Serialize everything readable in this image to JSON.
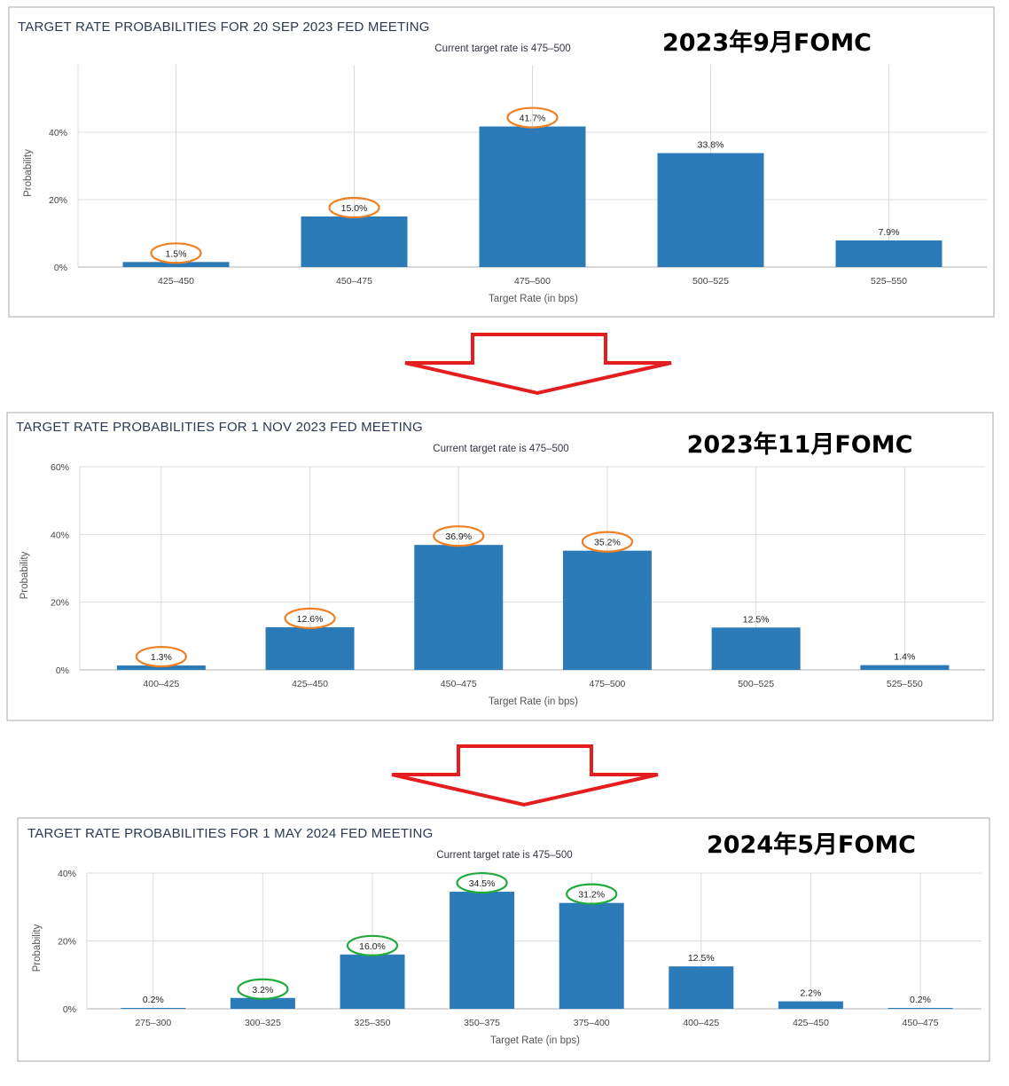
{
  "colors": {
    "bar": "#2b7bb9",
    "grid": "#dcdcdc",
    "frame": "#a8a8a8",
    "arrow": "#e41e1e",
    "circle_orange": "#f07f22",
    "circle_green": "#1faa3a"
  },
  "chart_data": [
    {
      "type": "bar",
      "title": "TARGET RATE PROBABILITIES FOR 20 SEP 2023 FED MEETING",
      "subtitle": "Current target rate is 475–500",
      "annotation": "2023年9月FOMC",
      "xlabel": "Target Rate (in bps)",
      "ylabel": "Probability",
      "ylim": [
        0,
        60
      ],
      "yticks": [
        0,
        20,
        40
      ],
      "ytick_labels": [
        "0%",
        "20%",
        "40%"
      ],
      "categories": [
        "425–450",
        "450–475",
        "475–500",
        "500–525",
        "525–550"
      ],
      "values": [
        1.5,
        15.0,
        41.7,
        33.8,
        7.9
      ],
      "value_labels": [
        "1.5%",
        "15.0%",
        "41.7%",
        "33.8%",
        "7.9%"
      ],
      "circled": [
        true,
        true,
        true,
        false,
        false
      ],
      "circle_color": "orange"
    },
    {
      "type": "bar",
      "title": "TARGET RATE PROBABILITIES FOR 1 NOV 2023 FED MEETING",
      "subtitle": "Current target rate is 475–500",
      "annotation": "2023年11月FOMC",
      "xlabel": "Target Rate (in bps)",
      "ylabel": "Probability",
      "ylim": [
        0,
        60
      ],
      "yticks": [
        0,
        20,
        40,
        60
      ],
      "ytick_labels": [
        "0%",
        "20%",
        "40%",
        "60%"
      ],
      "categories": [
        "400–425",
        "425–450",
        "450–475",
        "475–500",
        "500–525",
        "525–550"
      ],
      "values": [
        1.3,
        12.6,
        36.9,
        35.2,
        12.5,
        1.4
      ],
      "value_labels": [
        "1.3%",
        "12.6%",
        "36.9%",
        "35.2%",
        "12.5%",
        "1.4%"
      ],
      "circled": [
        true,
        true,
        true,
        true,
        false,
        false
      ],
      "circle_color": "orange"
    },
    {
      "type": "bar",
      "title": "TARGET RATE PROBABILITIES FOR 1 MAY 2024 FED MEETING",
      "subtitle": "Current target rate is 475–500",
      "annotation": "2024年5月FOMC",
      "xlabel": "Target Rate (in bps)",
      "ylabel": "Probability",
      "ylim": [
        0,
        40
      ],
      "yticks": [
        0,
        20,
        40
      ],
      "ytick_labels": [
        "0%",
        "20%",
        "40%"
      ],
      "categories": [
        "275–300",
        "300–325",
        "325–350",
        "350–375",
        "375–400",
        "400–425",
        "425–450",
        "450–475"
      ],
      "values": [
        0.2,
        3.2,
        16.0,
        34.5,
        31.2,
        12.5,
        2.2,
        0.2
      ],
      "value_labels": [
        "0.2%",
        "3.2%",
        "16.0%",
        "34.5%",
        "31.2%",
        "12.5%",
        "2.2%",
        "0.2%"
      ],
      "circled": [
        false,
        true,
        true,
        true,
        true,
        false,
        false,
        false
      ],
      "circle_color": "green"
    }
  ]
}
